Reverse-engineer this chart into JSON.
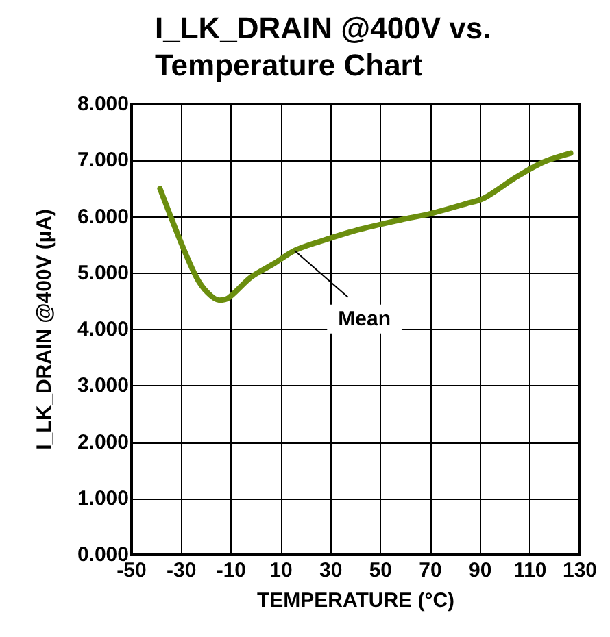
{
  "chart_data": {
    "type": "line",
    "title": "I_LK_DRAIN @400V vs.\nTemperature Chart",
    "xlabel": "TEMPERATURE (°C)",
    "ylabel": "I_LK_DRAIN @400V (µA)",
    "x": [
      -38.6,
      -30.4,
      -24,
      -19.4,
      -14.8,
      -11.1,
      -2,
      7.2,
      15.4,
      25.5,
      40.2,
      58.5,
      69.5,
      84.2,
      91.5,
      104.3,
      115.3,
      126.3
    ],
    "series": [
      {
        "color": "#6b8e0e",
        "values": [
          6.5,
          5.57,
          4.93,
          4.65,
          4.52,
          4.56,
          4.93,
          5.17,
          5.4,
          5.56,
          5.76,
          5.95,
          6.05,
          6.23,
          6.33,
          6.7,
          6.97,
          7.13
        ]
      }
    ],
    "xlim": [
      -50,
      130
    ],
    "xticks": [
      -50,
      -30,
      -10,
      10,
      30,
      50,
      70,
      90,
      110,
      130
    ],
    "ylim": [
      0,
      8
    ],
    "yticks": [
      {
        "value": 0,
        "label": "0.000"
      },
      {
        "value": 1,
        "label": "1.000"
      },
      {
        "value": 2,
        "label": "2.000"
      },
      {
        "value": 3,
        "label": "3.000"
      },
      {
        "value": 4,
        "label": "4.000"
      },
      {
        "value": 5,
        "label": "5.000"
      },
      {
        "value": 6,
        "label": "6.000"
      },
      {
        "value": 7,
        "label": "7.000"
      },
      {
        "value": 8,
        "label": "8.000"
      }
    ],
    "grid": true,
    "marker": "none",
    "line_style": "solid",
    "annotations": [
      {
        "text": "Mean",
        "x": 15.4,
        "y": 5.4
      }
    ]
  }
}
